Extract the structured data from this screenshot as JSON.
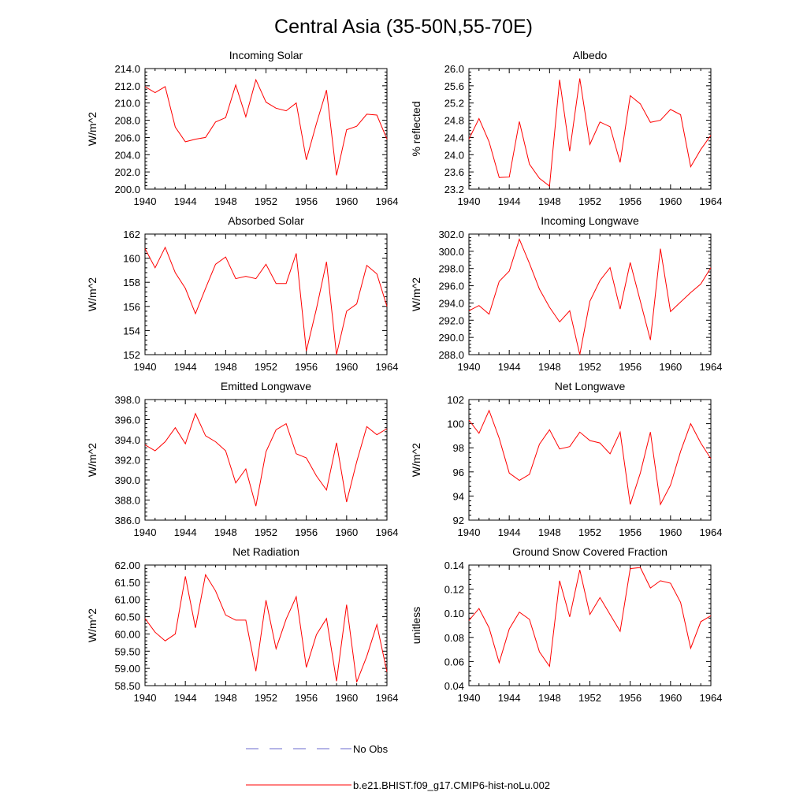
{
  "figure": {
    "title": "Central Asia (35-50N,55-70E)"
  },
  "legend": {
    "items": [
      {
        "label": "No Obs",
        "color": "#6a6acd",
        "style": "dashed"
      },
      {
        "label": "b.e21.BHIST.f09_g17.CMIP6-hist-noLu.002",
        "color": "#ff0000",
        "style": "solid"
      }
    ]
  },
  "chart_data": [
    {
      "type": "line",
      "title": "Incoming Solar",
      "xlabel": "",
      "ylabel": "W/m^2",
      "xlim": [
        1940,
        1964
      ],
      "ylim": [
        200.0,
        214.0
      ],
      "xticks": [
        "1940",
        "1944",
        "1948",
        "1952",
        "1956",
        "1960",
        "1964"
      ],
      "yticks": [
        "200.0",
        "202.0",
        "204.0",
        "206.0",
        "208.0",
        "210.0",
        "212.0",
        "214.0"
      ],
      "series": [
        {
          "color": "#ff0000",
          "x": [
            1940,
            1941,
            1942,
            1943,
            1944,
            1945,
            1946,
            1947,
            1948,
            1949,
            1950,
            1951,
            1952,
            1953,
            1954,
            1955,
            1956,
            1957,
            1958,
            1959,
            1960,
            1961,
            1962,
            1963,
            1964
          ],
          "y": [
            211.9,
            211.2,
            211.9,
            207.2,
            205.5,
            205.8,
            206.0,
            207.8,
            208.3,
            212.1,
            208.4,
            212.7,
            210.1,
            209.4,
            209.1,
            210.0,
            203.4,
            207.6,
            211.5,
            201.6,
            206.9,
            207.3,
            208.7,
            208.6,
            205.8
          ]
        }
      ]
    },
    {
      "type": "line",
      "title": "Albedo",
      "xlabel": "",
      "ylabel": "% reflected",
      "xlim": [
        1940,
        1964
      ],
      "ylim": [
        23.2,
        26.0
      ],
      "xticks": [
        "1940",
        "1944",
        "1948",
        "1952",
        "1956",
        "1960",
        "1964"
      ],
      "yticks": [
        "23.2",
        "23.6",
        "24.0",
        "24.4",
        "24.8",
        "25.2",
        "25.6",
        "26.0"
      ],
      "series": [
        {
          "color": "#ff0000",
          "x": [
            1940,
            1941,
            1942,
            1943,
            1944,
            1945,
            1946,
            1947,
            1948,
            1949,
            1950,
            1951,
            1952,
            1953,
            1954,
            1955,
            1956,
            1957,
            1958,
            1959,
            1960,
            1961,
            1962,
            1963,
            1964
          ],
          "y": [
            24.36,
            24.84,
            24.3,
            23.47,
            23.48,
            24.77,
            23.78,
            23.45,
            23.27,
            25.74,
            24.08,
            25.77,
            24.24,
            24.76,
            24.65,
            23.82,
            25.37,
            25.18,
            24.75,
            24.8,
            25.05,
            24.93,
            23.72,
            24.12,
            24.45
          ]
        }
      ]
    },
    {
      "type": "line",
      "title": "Absorbed Solar",
      "xlabel": "",
      "ylabel": "W/m^2",
      "xlim": [
        1940,
        1964
      ],
      "ylim": [
        152,
        162
      ],
      "xticks": [
        "1940",
        "1944",
        "1948",
        "1952",
        "1956",
        "1960",
        "1964"
      ],
      "yticks": [
        "152",
        "154",
        "156",
        "158",
        "160",
        "162"
      ],
      "series": [
        {
          "color": "#ff0000",
          "x": [
            1940,
            1941,
            1942,
            1943,
            1944,
            1945,
            1946,
            1947,
            1948,
            1949,
            1950,
            1951,
            1952,
            1953,
            1954,
            1955,
            1956,
            1957,
            1958,
            1959,
            1960,
            1961,
            1962,
            1963,
            1964
          ],
          "y": [
            160.8,
            159.2,
            160.9,
            158.8,
            157.5,
            155.4,
            157.5,
            159.5,
            160.1,
            158.3,
            158.5,
            158.3,
            159.5,
            157.9,
            157.9,
            160.4,
            152.3,
            155.8,
            159.7,
            152.0,
            155.6,
            156.2,
            159.4,
            158.7,
            156.0
          ]
        }
      ]
    },
    {
      "type": "line",
      "title": "Incoming Longwave",
      "xlabel": "",
      "ylabel": "W/m^2",
      "xlim": [
        1940,
        1964
      ],
      "ylim": [
        288.0,
        302.0
      ],
      "xticks": [
        "1940",
        "1944",
        "1948",
        "1952",
        "1956",
        "1960",
        "1964"
      ],
      "yticks": [
        "288.0",
        "290.0",
        "292.0",
        "294.0",
        "296.0",
        "298.0",
        "300.0",
        "302.0"
      ],
      "series": [
        {
          "color": "#ff0000",
          "x": [
            1940,
            1941,
            1942,
            1943,
            1944,
            1945,
            1946,
            1947,
            1948,
            1949,
            1950,
            1951,
            1952,
            1953,
            1954,
            1955,
            1956,
            1957,
            1958,
            1959,
            1960,
            1961,
            1962,
            1963,
            1964
          ],
          "y": [
            293.1,
            293.7,
            292.7,
            296.5,
            297.7,
            301.4,
            298.6,
            295.6,
            293.5,
            291.8,
            293.1,
            288.0,
            294.2,
            296.6,
            298.1,
            293.3,
            298.7,
            294.2,
            289.7,
            300.3,
            293.0,
            294.1,
            295.2,
            296.2,
            298.1
          ]
        }
      ]
    },
    {
      "type": "line",
      "title": "Emitted Longwave",
      "xlabel": "",
      "ylabel": "W/m^2",
      "xlim": [
        1940,
        1964
      ],
      "ylim": [
        386.0,
        398.0
      ],
      "xticks": [
        "1940",
        "1944",
        "1948",
        "1952",
        "1956",
        "1960",
        "1964"
      ],
      "yticks": [
        "386.0",
        "388.0",
        "390.0",
        "392.0",
        "394.0",
        "396.0",
        "398.0"
      ],
      "series": [
        {
          "color": "#ff0000",
          "x": [
            1940,
            1941,
            1942,
            1943,
            1944,
            1945,
            1946,
            1947,
            1948,
            1949,
            1950,
            1951,
            1952,
            1953,
            1954,
            1955,
            1956,
            1957,
            1958,
            1959,
            1960,
            1961,
            1962,
            1963,
            1964
          ],
          "y": [
            393.5,
            392.9,
            393.8,
            395.2,
            393.6,
            396.6,
            394.4,
            393.8,
            392.9,
            389.7,
            391.1,
            387.4,
            392.8,
            395.0,
            395.6,
            392.6,
            392.2,
            390.4,
            389.0,
            393.7,
            387.8,
            391.8,
            395.3,
            394.5,
            395.1
          ]
        }
      ]
    },
    {
      "type": "line",
      "title": "Net Longwave",
      "xlabel": "",
      "ylabel": "W/m^2",
      "xlim": [
        1940,
        1964
      ],
      "ylim": [
        92,
        102
      ],
      "xticks": [
        "1940",
        "1944",
        "1948",
        "1952",
        "1956",
        "1960",
        "1964"
      ],
      "yticks": [
        "92",
        "94",
        "96",
        "98",
        "100",
        "102"
      ],
      "series": [
        {
          "color": "#ff0000",
          "x": [
            1940,
            1941,
            1942,
            1943,
            1944,
            1945,
            1946,
            1947,
            1948,
            1949,
            1950,
            1951,
            1952,
            1953,
            1954,
            1955,
            1956,
            1957,
            1958,
            1959,
            1960,
            1961,
            1962,
            1963,
            1964
          ],
          "y": [
            100.3,
            99.2,
            101.1,
            98.8,
            95.9,
            95.3,
            95.8,
            98.3,
            99.5,
            97.9,
            98.1,
            99.3,
            98.6,
            98.4,
            97.5,
            99.3,
            93.3,
            95.9,
            99.3,
            93.3,
            94.9,
            97.7,
            100.0,
            98.4,
            97.1
          ]
        }
      ]
    },
    {
      "type": "line",
      "title": "Net Radiation",
      "xlabel": "",
      "ylabel": "W/m^2",
      "xlim": [
        1940,
        1964
      ],
      "ylim": [
        58.5,
        62.0
      ],
      "xticks": [
        "1940",
        "1944",
        "1948",
        "1952",
        "1956",
        "1960",
        "1964"
      ],
      "yticks": [
        "58.50",
        "59.00",
        "59.50",
        "60.00",
        "60.50",
        "61.00",
        "61.50",
        "62.00"
      ],
      "series": [
        {
          "color": "#ff0000",
          "x": [
            1940,
            1941,
            1942,
            1943,
            1944,
            1945,
            1946,
            1947,
            1948,
            1949,
            1950,
            1951,
            1952,
            1953,
            1954,
            1955,
            1956,
            1957,
            1958,
            1959,
            1960,
            1961,
            1962,
            1963,
            1964
          ],
          "y": [
            60.45,
            60.05,
            59.8,
            60.0,
            61.67,
            60.18,
            61.72,
            61.25,
            60.55,
            60.4,
            60.4,
            58.92,
            60.98,
            59.57,
            60.43,
            61.08,
            59.03,
            59.98,
            60.45,
            58.63,
            60.85,
            58.6,
            59.35,
            60.27,
            58.9
          ]
        }
      ]
    },
    {
      "type": "line",
      "title": "Ground Snow Covered Fraction",
      "xlabel": "",
      "ylabel": "unitless",
      "xlim": [
        1940,
        1964
      ],
      "ylim": [
        0.04,
        0.14
      ],
      "xticks": [
        "1940",
        "1944",
        "1948",
        "1952",
        "1956",
        "1960",
        "1964"
      ],
      "yticks": [
        "0.04",
        "0.06",
        "0.08",
        "0.10",
        "0.12",
        "0.14"
      ],
      "series": [
        {
          "color": "#ff0000",
          "x": [
            1940,
            1941,
            1942,
            1943,
            1944,
            1945,
            1946,
            1947,
            1948,
            1949,
            1950,
            1951,
            1952,
            1953,
            1954,
            1955,
            1956,
            1957,
            1958,
            1959,
            1960,
            1961,
            1962,
            1963,
            1964
          ],
          "y": [
            0.094,
            0.104,
            0.088,
            0.059,
            0.087,
            0.101,
            0.095,
            0.068,
            0.056,
            0.127,
            0.097,
            0.136,
            0.099,
            0.113,
            0.099,
            0.085,
            0.137,
            0.138,
            0.121,
            0.127,
            0.125,
            0.109,
            0.071,
            0.093,
            0.098
          ]
        }
      ]
    }
  ]
}
